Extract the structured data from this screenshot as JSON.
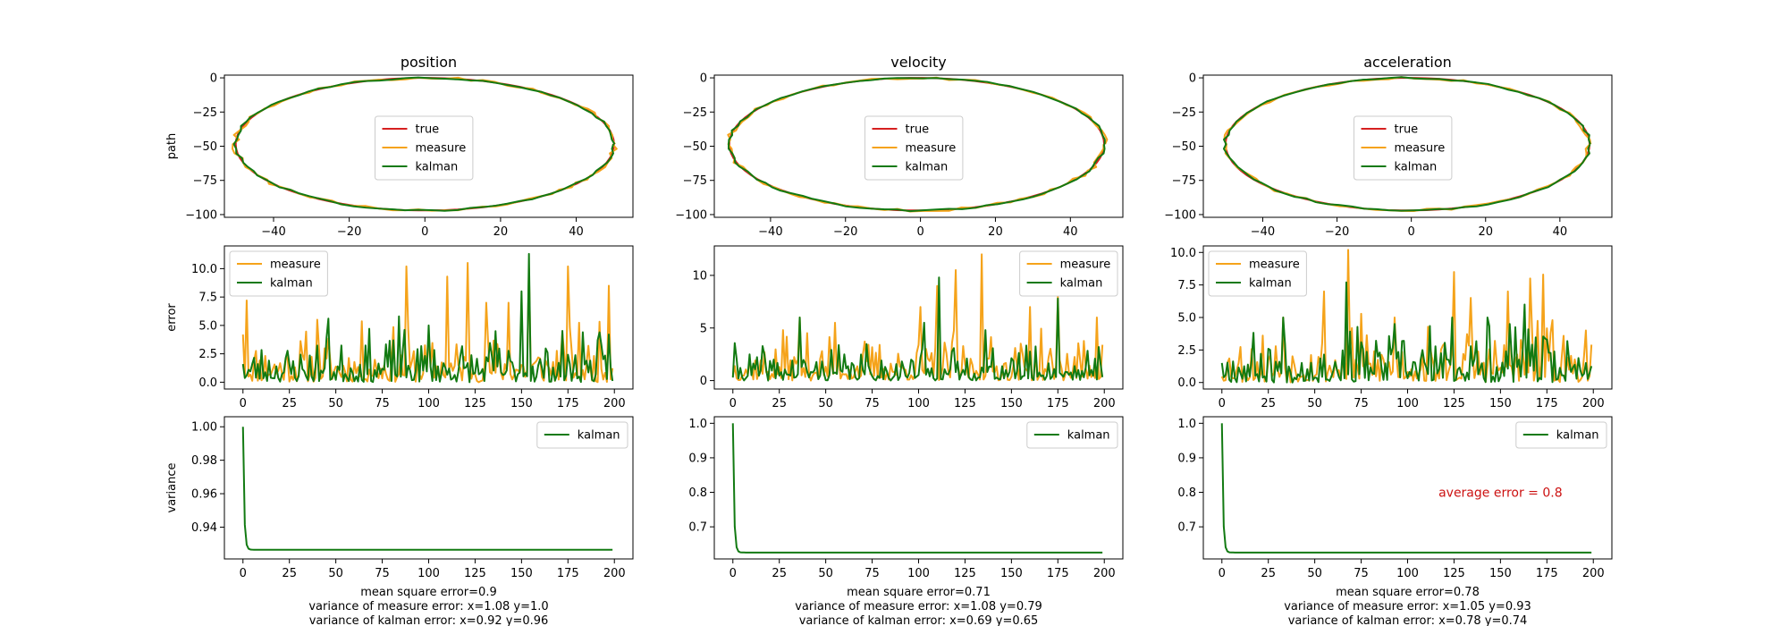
{
  "chart_data": [
    {
      "type": "line",
      "column": 0,
      "row": 0,
      "title": "position",
      "ylabel": "path",
      "xlabel": "",
      "xlim": [
        -53,
        55
      ],
      "ylim": [
        -102,
        2
      ],
      "xticks": [
        "-40",
        "-20",
        "0",
        "20",
        "40"
      ],
      "yticks": [
        "0",
        "-25",
        "-50",
        "-75",
        "-100"
      ],
      "legend": {
        "loc": "center",
        "items": [
          "true",
          "measure",
          "kalman"
        ]
      },
      "series": [
        {
          "name": "true",
          "kind": "ellipse",
          "cx": 0,
          "cy": -48.5,
          "rx": 50,
          "ry": 48.5,
          "color": "#d62020"
        },
        {
          "name": "measure",
          "kind": "ellipse",
          "cx": 0,
          "cy": -48.5,
          "rx": 50,
          "ry": 48.5,
          "noise": 2.0,
          "color": "#f5a31a"
        },
        {
          "name": "kalman",
          "kind": "ellipse",
          "cx": 0,
          "cy": -48.5,
          "rx": 50,
          "ry": 48.5,
          "noise": 1.2,
          "color": "#127a12"
        }
      ]
    },
    {
      "type": "line",
      "column": 1,
      "row": 0,
      "title": "velocity",
      "ylabel": "",
      "xlabel": "",
      "xlim": [
        -55,
        54
      ],
      "ylim": [
        -102,
        2
      ],
      "xticks": [
        "-40",
        "-20",
        "0",
        "20",
        "40"
      ],
      "yticks": [
        "0",
        "-25",
        "-50",
        "-75",
        "-100"
      ],
      "legend": {
        "loc": "center",
        "items": [
          "true",
          "measure",
          "kalman"
        ]
      },
      "series": [
        {
          "name": "true",
          "kind": "ellipse",
          "cx": -1,
          "cy": -48.5,
          "rx": 50,
          "ry": 48.5,
          "color": "#d62020"
        },
        {
          "name": "measure",
          "kind": "ellipse",
          "cx": -1,
          "cy": -48.5,
          "rx": 50,
          "ry": 48.5,
          "noise": 2.0,
          "color": "#f5a31a"
        },
        {
          "name": "kalman",
          "kind": "ellipse",
          "cx": -1,
          "cy": -48.5,
          "rx": 50,
          "ry": 48.5,
          "noise": 1.2,
          "color": "#127a12"
        }
      ]
    },
    {
      "type": "line",
      "column": 2,
      "row": 0,
      "title": "acceleration",
      "ylabel": "",
      "xlabel": "",
      "xlim": [
        -56,
        54
      ],
      "ylim": [
        -102,
        2
      ],
      "xticks": [
        "-40",
        "-20",
        "0",
        "20",
        "40"
      ],
      "yticks": [
        "0",
        "-25",
        "-50",
        "-75",
        "-100"
      ],
      "legend": {
        "loc": "center",
        "items": [
          "true",
          "measure",
          "kalman"
        ]
      },
      "series": [
        {
          "name": "true",
          "kind": "ellipse",
          "cx": -1,
          "cy": -48.5,
          "rx": 49,
          "ry": 48.5,
          "color": "#d62020"
        },
        {
          "name": "measure",
          "kind": "ellipse",
          "cx": -1,
          "cy": -48.5,
          "rx": 49,
          "ry": 48.5,
          "noise": 2.0,
          "color": "#f5a31a"
        },
        {
          "name": "kalman",
          "kind": "ellipse",
          "cx": -1,
          "cy": -48.5,
          "rx": 49,
          "ry": 48.5,
          "noise": 1.2,
          "color": "#127a12"
        }
      ]
    },
    {
      "type": "line",
      "column": 0,
      "row": 1,
      "title": "",
      "ylabel": "error",
      "xlabel": "",
      "xlim": [
        -10,
        210
      ],
      "ylim": [
        -0.6,
        12.0
      ],
      "xticks": [
        "0",
        "25",
        "50",
        "75",
        "100",
        "125",
        "150",
        "175",
        "200"
      ],
      "yticks": [
        "0.0",
        "2.5",
        "5.0",
        "7.5",
        "10.0"
      ],
      "legend": {
        "loc": "upper left",
        "items": [
          "measure",
          "kalman"
        ]
      },
      "series": [
        {
          "name": "measure",
          "kind": "noise",
          "n": 200,
          "mean": 2.0,
          "seed": 11,
          "color": "#f5a31a",
          "peaks": [
            [
              0,
              4.2
            ],
            [
              2,
              7.2
            ],
            [
              40,
              5.5
            ],
            [
              88,
              10.2
            ],
            [
              110,
              9.3
            ],
            [
              121,
              10.5
            ],
            [
              131,
              7.0
            ],
            [
              143,
              7.0
            ],
            [
              154,
              10.0
            ],
            [
              175,
              10.2
            ],
            [
              197,
              8.5
            ]
          ]
        },
        {
          "name": "kalman",
          "kind": "noise",
          "n": 200,
          "mean": 1.7,
          "seed": 23,
          "color": "#127a12",
          "peaks": [
            [
              0,
              1.6
            ],
            [
              46,
              5.6
            ],
            [
              84,
              5.8
            ],
            [
              100,
              5.0
            ],
            [
              136,
              4.5
            ],
            [
              150,
              8.0
            ],
            [
              154,
              11.3
            ],
            [
              183,
              4.4
            ],
            [
              197,
              4.2
            ]
          ]
        }
      ]
    },
    {
      "type": "line",
      "column": 1,
      "row": 1,
      "title": "",
      "ylabel": "",
      "xlabel": "",
      "xlim": [
        -10,
        210
      ],
      "ylim": [
        -0.8,
        12.8
      ],
      "xticks": [
        "0",
        "25",
        "50",
        "75",
        "100",
        "125",
        "150",
        "175",
        "200"
      ],
      "yticks": [
        "0",
        "5",
        "10"
      ],
      "legend": {
        "loc": "upper right",
        "items": [
          "measure",
          "kalman"
        ]
      },
      "series": [
        {
          "name": "measure",
          "kind": "noise",
          "n": 200,
          "mean": 1.8,
          "seed": 37,
          "color": "#f5a31a",
          "peaks": [
            [
              36,
              6.0
            ],
            [
              55,
              5.5
            ],
            [
              101,
              7.0
            ],
            [
              110,
              9.0
            ],
            [
              120,
              10.5
            ],
            [
              134,
              12.0
            ],
            [
              160,
              7.0
            ],
            [
              175,
              8.0
            ],
            [
              196,
              6.0
            ]
          ]
        },
        {
          "name": "kalman",
          "kind": "noise",
          "n": 200,
          "mean": 1.3,
          "seed": 41,
          "color": "#127a12",
          "peaks": [
            [
              36,
              6.0
            ],
            [
              103,
              5.5
            ],
            [
              111,
              9.8
            ],
            [
              136,
              4.8
            ],
            [
              175,
              7.8
            ],
            [
              197,
              3.2
            ]
          ]
        }
      ]
    },
    {
      "type": "line",
      "column": 2,
      "row": 1,
      "title": "",
      "ylabel": "",
      "xlabel": "",
      "xlim": [
        -10,
        210
      ],
      "ylim": [
        -0.5,
        10.5
      ],
      "xticks": [
        "0",
        "25",
        "50",
        "75",
        "100",
        "125",
        "150",
        "175",
        "200"
      ],
      "yticks": [
        "0.0",
        "2.5",
        "5.0",
        "7.5",
        "10.0"
      ],
      "legend": {
        "loc": "upper left",
        "items": [
          "measure",
          "kalman"
        ]
      },
      "series": [
        {
          "name": "measure",
          "kind": "noise",
          "n": 200,
          "mean": 2.0,
          "seed": 53,
          "color": "#f5a31a",
          "peaks": [
            [
              33,
              5.0
            ],
            [
              55,
              7.0
            ],
            [
              68,
              10.2
            ],
            [
              93,
              5.0
            ],
            [
              125,
              8.5
            ],
            [
              134,
              6.5
            ],
            [
              154,
              7.0
            ],
            [
              166,
              8.0
            ],
            [
              173,
              8.3
            ],
            [
              196,
              4.0
            ]
          ]
        },
        {
          "name": "kalman",
          "kind": "noise",
          "n": 200,
          "mean": 1.7,
          "seed": 67,
          "color": "#127a12",
          "peaks": [
            [
              0,
              1.5
            ],
            [
              33,
              5.0
            ],
            [
              67,
              7.7
            ],
            [
              93,
              4.5
            ],
            [
              124,
              5.0
            ],
            [
              143,
              5.0
            ],
            [
              155,
              4.5
            ],
            [
              163,
              6.0
            ],
            [
              196,
              1.5
            ]
          ]
        }
      ]
    },
    {
      "type": "line",
      "column": 0,
      "row": 2,
      "title": "",
      "ylabel": "variance",
      "xlabel": "",
      "xlim": [
        -10,
        210
      ],
      "ylim": [
        0.921,
        1.006
      ],
      "xticks": [
        "0",
        "25",
        "50",
        "75",
        "100",
        "125",
        "150",
        "175",
        "200"
      ],
      "yticks": [
        "0.94",
        "0.96",
        "0.98",
        "1.00"
      ],
      "yticks_values": [
        0.94,
        0.96,
        0.98,
        1.0
      ],
      "legend": {
        "loc": "upper right",
        "items": [
          "kalman"
        ]
      },
      "series": [
        {
          "name": "kalman",
          "kind": "decay",
          "start": 1.0,
          "floor": 0.9265,
          "rate": 1.6,
          "n": 200,
          "color": "#127a12"
        }
      ]
    },
    {
      "type": "line",
      "column": 1,
      "row": 2,
      "title": "",
      "ylabel": "",
      "xlabel": "",
      "xlim": [
        -10,
        210
      ],
      "ylim": [
        0.607,
        1.019
      ],
      "xticks": [
        "0",
        "25",
        "50",
        "75",
        "100",
        "125",
        "150",
        "175",
        "200"
      ],
      "yticks": [
        "0.7",
        "0.8",
        "0.9",
        "1.0"
      ],
      "yticks_values": [
        0.7,
        0.8,
        0.9,
        1.0
      ],
      "legend": {
        "loc": "upper right",
        "items": [
          "kalman"
        ]
      },
      "series": [
        {
          "name": "kalman",
          "kind": "decay",
          "start": 1.0,
          "floor": 0.6256,
          "rate": 1.6,
          "n": 200,
          "color": "#127a12"
        }
      ]
    },
    {
      "type": "line",
      "column": 2,
      "row": 2,
      "title": "",
      "ylabel": "",
      "xlabel": "",
      "xlim": [
        -10,
        210
      ],
      "ylim": [
        0.607,
        1.019
      ],
      "xticks": [
        "0",
        "25",
        "50",
        "75",
        "100",
        "125",
        "150",
        "175",
        "200"
      ],
      "yticks": [
        "0.7",
        "0.8",
        "0.9",
        "1.0"
      ],
      "yticks_values": [
        0.7,
        0.8,
        0.9,
        1.0
      ],
      "legend": {
        "loc": "upper right",
        "items": [
          "kalman"
        ]
      },
      "annotation": {
        "text": "average error = 0.8",
        "x": 150,
        "y": 0.8,
        "color": "#cc1111"
      },
      "series": [
        {
          "name": "kalman",
          "kind": "decay",
          "start": 1.0,
          "floor": 0.6256,
          "rate": 1.6,
          "n": 200,
          "color": "#127a12"
        }
      ]
    }
  ],
  "captions": [
    [
      "mean square error=0.9",
      "variance of measure error: x=1.08 y=1.0",
      "variance of kalman error: x=0.92 y=0.96"
    ],
    [
      "mean square error=0.71",
      "variance of measure error: x=1.08 y=0.79",
      "variance of kalman error: x=0.69 y=0.65"
    ],
    [
      "mean square error=0.78",
      "variance of measure error: x=1.05 y=0.93",
      "variance of kalman error: x=0.78 y=0.74"
    ]
  ],
  "colors": {
    "true": "#d62020",
    "measure": "#f5a31a",
    "kalman": "#127a12",
    "annotation": "#cc1111"
  }
}
